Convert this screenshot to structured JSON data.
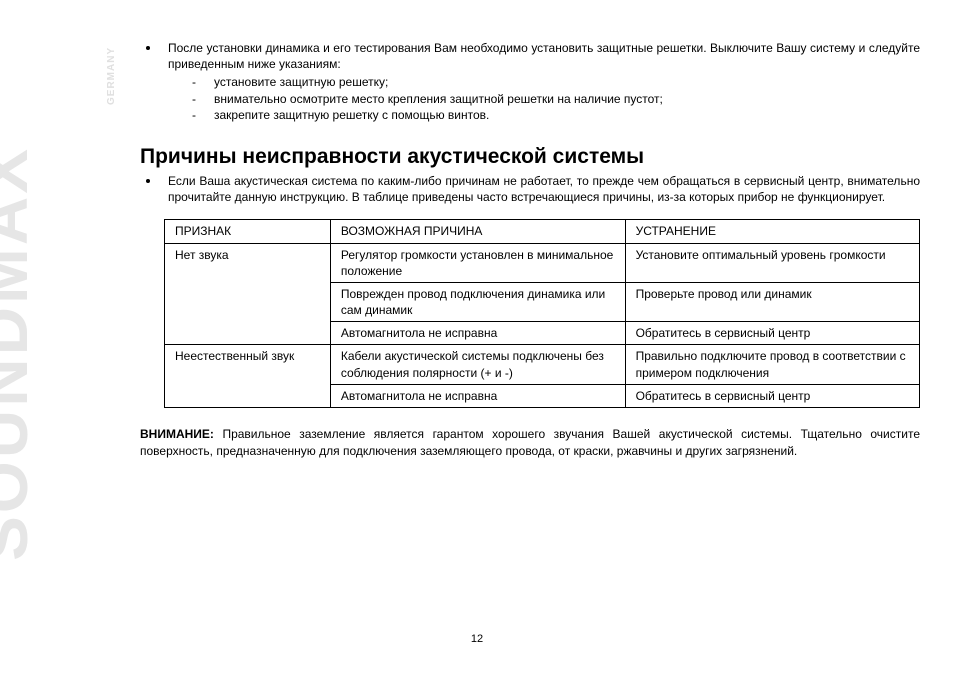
{
  "brand": "SOUNDMAX",
  "brand_sub": "GERMANY",
  "intro": {
    "text": "После установки динамика и его тестирования Вам необходимо установить защитные решетки. Выключите Вашу систему и следуйте приведенным ниже указаниям:",
    "subitems": [
      "установите защитную решетку;",
      "внимательно осмотрите место крепления защитной решетки на наличие пустот;",
      "закрепите защитную решетку с помощью винтов."
    ]
  },
  "section_title": "Причины неисправности акустической системы",
  "section_intro": "Если Ваша акустическая система по каким-либо причинам не работает, то прежде чем обращаться в сервисный центр, внимательно прочитайте данную инструкцию. В таблице приведены часто встречающиеся причины, из-за которых прибор не функционирует.",
  "table": {
    "headers": [
      "ПРИЗНАК",
      "ВОЗМОЖНАЯ ПРИЧИНА",
      "УСТРАНЕНИЕ"
    ],
    "group1": {
      "symptom": "Нет звука",
      "rows": [
        {
          "cause": "Регулятор громкости установлен в минимальное положение",
          "fix": "Установите оптимальный уровень громкости"
        },
        {
          "cause": "Поврежден провод подключения динамика или сам динамик",
          "fix": "Проверьте провод или динамик"
        },
        {
          "cause": "Автомагнитола не исправна",
          "fix": "Обратитесь в сервисный центр"
        }
      ]
    },
    "group2": {
      "symptom": "Неестественный звук",
      "rows": [
        {
          "cause": "Кабели акустической системы подключены без соблюдения полярности (+ и -)",
          "fix": "Правильно подключите провод в соответствии с примером подключения"
        },
        {
          "cause": "Автомагнитола не исправна",
          "fix": "Обратитесь в сервисный центр"
        }
      ]
    }
  },
  "attention_label": "ВНИМАНИЕ:",
  "attention_text": " Правильное заземление является гарантом хорошего звучания Вашей акустической системы. Тщательно очистите поверхность, предназначенную для подключения заземляющего провода, от краски, ржавчины и других загрязнений.",
  "page_number": "12"
}
